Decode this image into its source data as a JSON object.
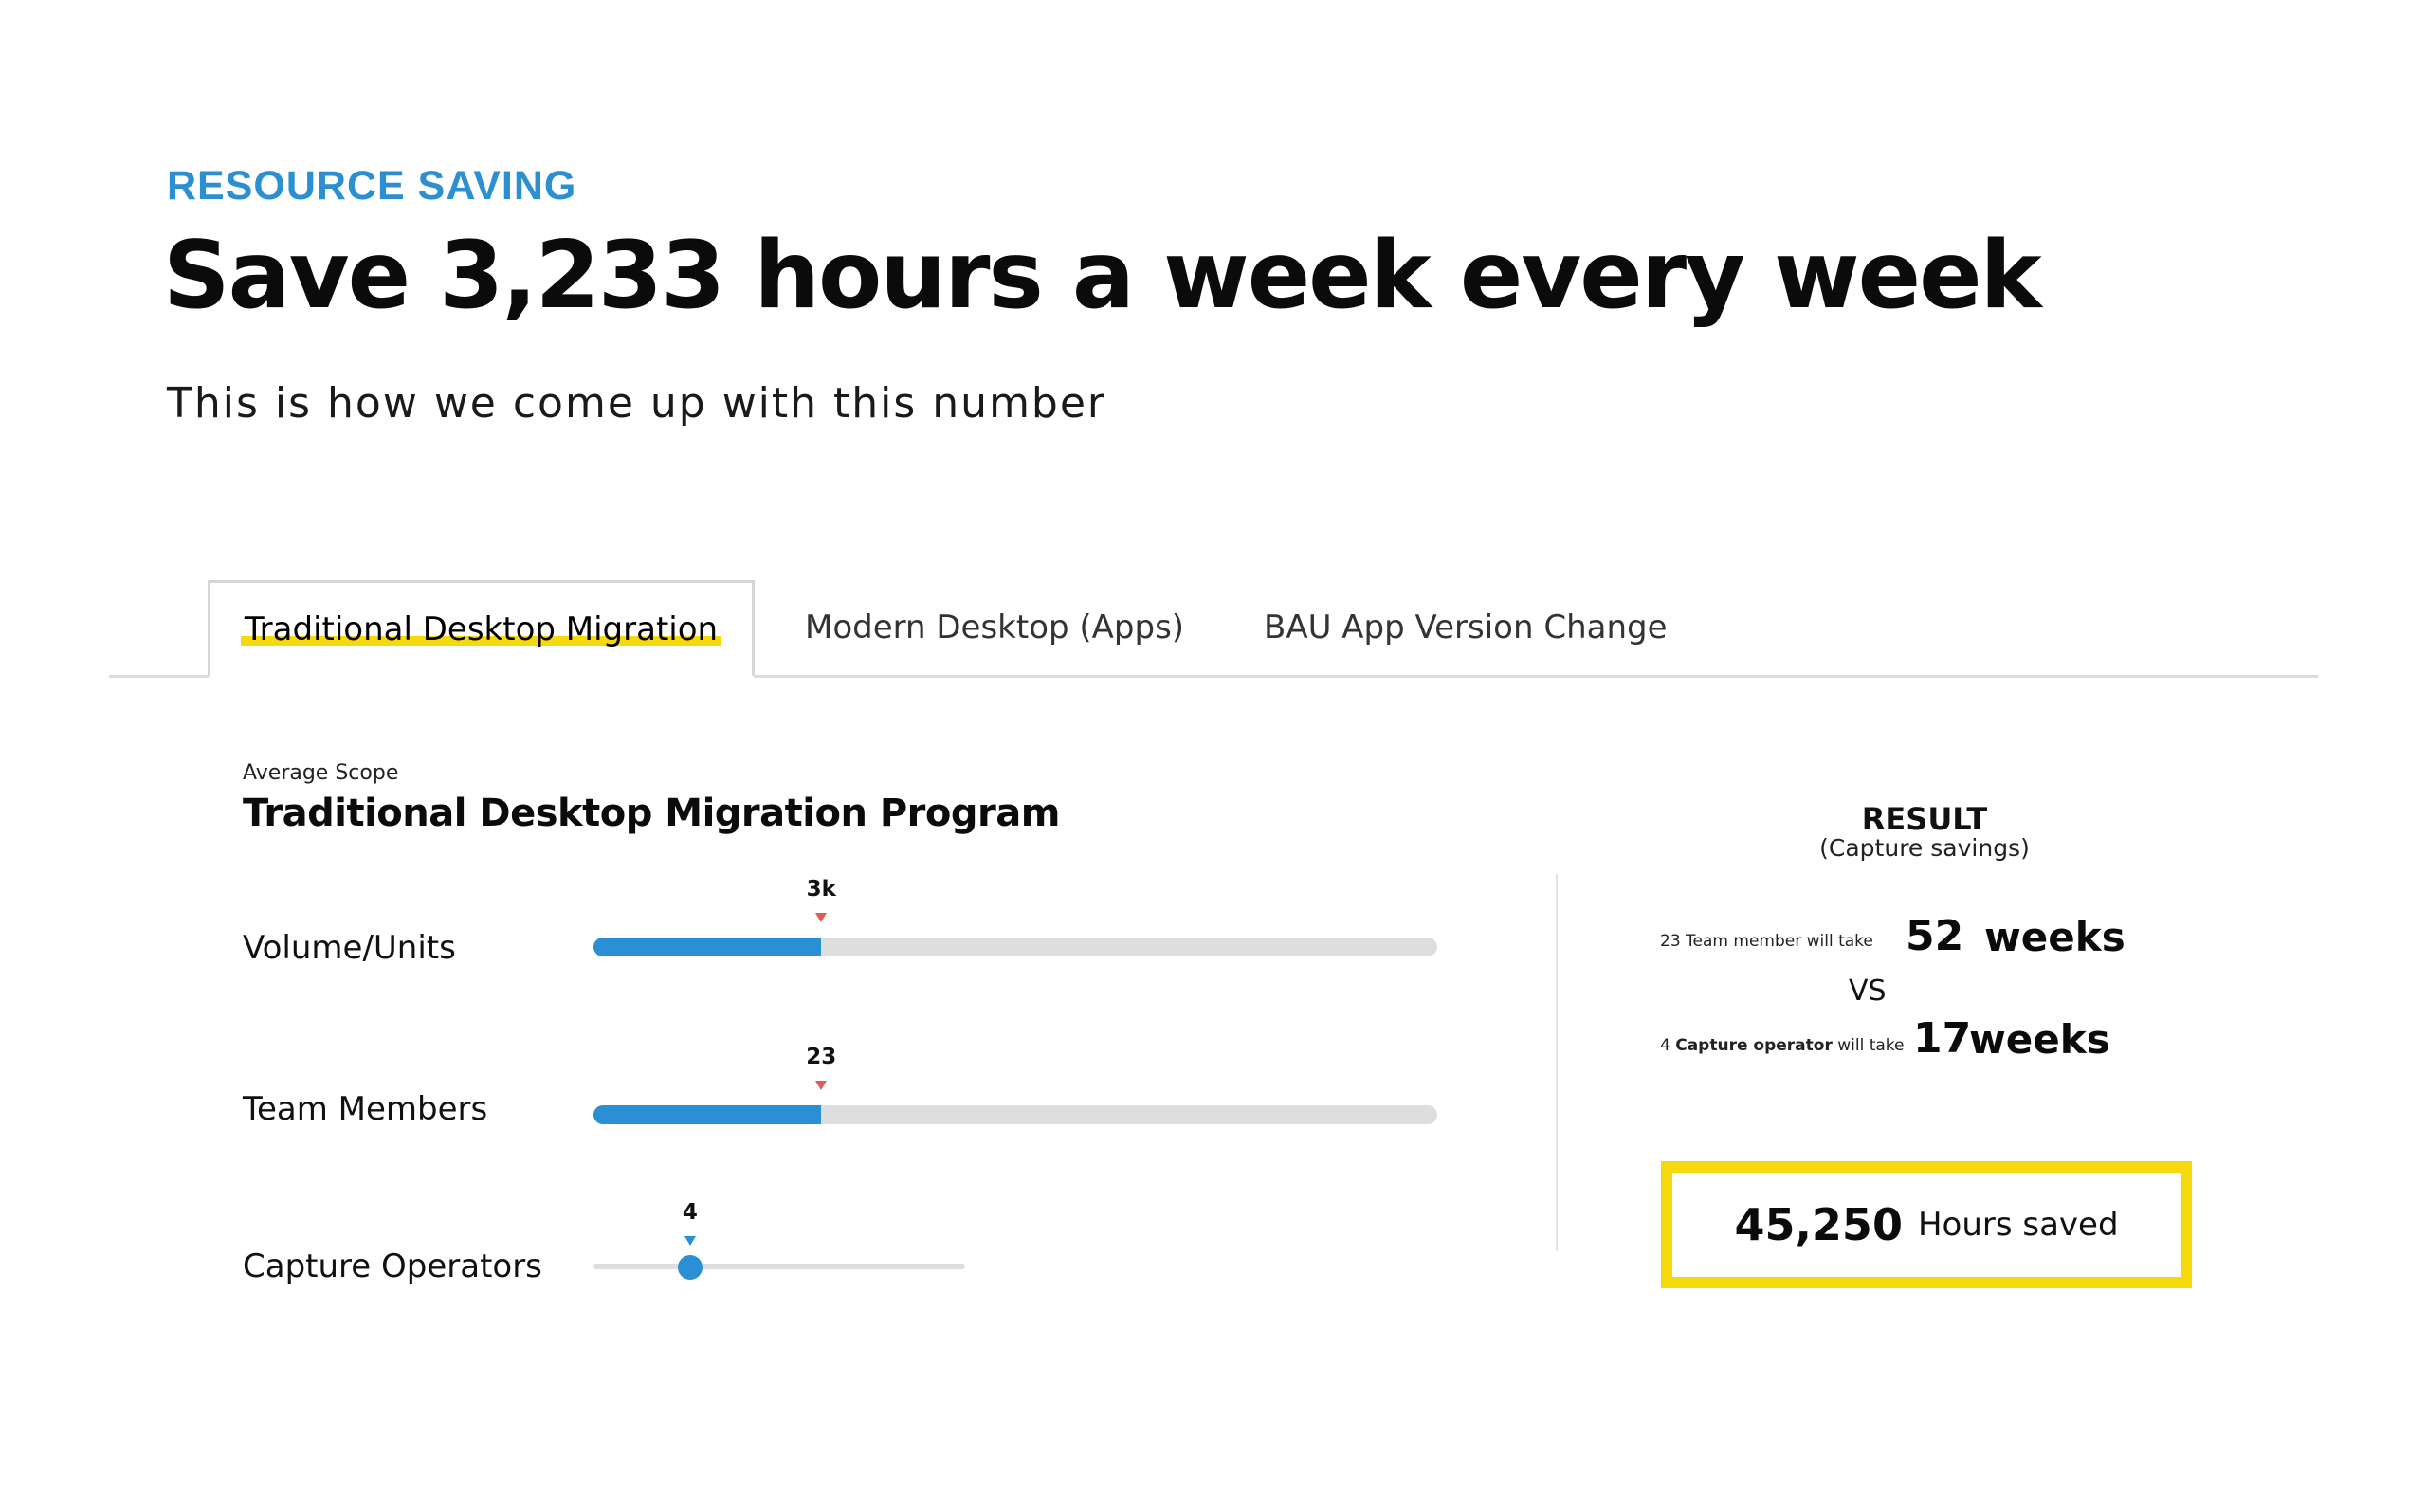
{
  "header": {
    "eyebrow": "RESOURCE SAVING",
    "title": "Save 3,233 hours a week every week",
    "subtitle": "This is how we come up with this number"
  },
  "tabs": [
    {
      "label": "Traditional Desktop Migration",
      "active": true
    },
    {
      "label": "Modern Desktop (Apps)",
      "active": false
    },
    {
      "label": "BAU App Version Change",
      "active": false
    }
  ],
  "program": {
    "scope_label": "Average Scope",
    "title": "Traditional Desktop Migration Program"
  },
  "sliders": [
    {
      "label": "Volume/Units",
      "value_text": "3k",
      "fill_fraction": 0.27
    },
    {
      "label": "Team Members",
      "value_text": "23",
      "fill_fraction": 0.27
    },
    {
      "label": "Capture Operators",
      "value_text": "4",
      "fill_fraction": 0.26
    }
  ],
  "result": {
    "title": "RESULT",
    "subtitle": "(Capture savings)",
    "team": {
      "count": "23",
      "label": "Team member will take",
      "value": "52",
      "unit": "weeks"
    },
    "vs": "VS",
    "capture": {
      "count": "4",
      "label_bold": "Capture operator",
      "label": "will take",
      "value": "17",
      "unit": "weeks"
    },
    "saved_value": "45,250",
    "saved_label": "Hours saved"
  },
  "colors": {
    "accent_blue": "#2a8fd4",
    "highlight_yellow": "#f5d90a",
    "marker_red": "#e05a5a"
  }
}
